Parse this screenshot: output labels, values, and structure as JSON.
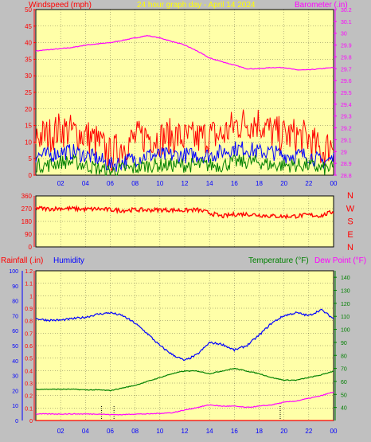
{
  "chart_data": [
    {
      "type": "line",
      "title": "24 hour graph day - April 14 2024",
      "ylabel": "Windspeed (mph)",
      "y2label": "Barometer (.in)",
      "ylim": [
        0,
        50
      ],
      "y2lim": [
        28.8,
        30.2
      ],
      "x": [
        0,
        1,
        2,
        3,
        4,
        5,
        6,
        7,
        8,
        9,
        10,
        11,
        12,
        13,
        14,
        15,
        16,
        17,
        18,
        19,
        20,
        21,
        22,
        23,
        24
      ],
      "xlim": [
        0,
        24
      ],
      "xticks": [
        "02",
        "04",
        "06",
        "08",
        "10",
        "12",
        "14",
        "16",
        "18",
        "20",
        "22",
        "00"
      ],
      "yticks": [
        "0",
        "5",
        "10",
        "15",
        "20",
        "25",
        "30",
        "35",
        "40",
        "45",
        "50"
      ],
      "y2ticks": [
        "28.8",
        "28.9",
        "29",
        "29.1",
        "29.2",
        "29.3",
        "29.4",
        "29.5",
        "29.6",
        "29.7",
        "29.8",
        "29.9",
        "30",
        "30.1",
        "30.2"
      ],
      "grid": true,
      "series": [
        {
          "name": "Barometer",
          "color": "#ff00ff",
          "values": [
            29.85,
            29.86,
            29.87,
            29.88,
            29.9,
            29.91,
            29.92,
            29.94,
            29.96,
            29.98,
            29.96,
            29.93,
            29.9,
            29.85,
            29.79,
            29.76,
            29.73,
            29.7,
            29.7,
            29.71,
            29.71,
            29.69,
            29.69,
            29.7,
            29.71
          ]
        },
        {
          "name": "Gust",
          "color": "#ff0000",
          "values": [
            12,
            12,
            14,
            13,
            12,
            10,
            6,
            9,
            11,
            12,
            11,
            12,
            11,
            11,
            12,
            12,
            15,
            16,
            16,
            13,
            12,
            12,
            11,
            7,
            10
          ]
        },
        {
          "name": "Average",
          "color": "#0000ff",
          "values": [
            6,
            6,
            7,
            7,
            6,
            5,
            3,
            4,
            5,
            6,
            6,
            6,
            6,
            6,
            6,
            7,
            8,
            8,
            7,
            7,
            6,
            6,
            6,
            4,
            5
          ]
        },
        {
          "name": "Minimum",
          "color": "#008000",
          "values": [
            3,
            3,
            4,
            4,
            3,
            2,
            1,
            2,
            2,
            3,
            3,
            3,
            3,
            3,
            3,
            3,
            4,
            4,
            4,
            3,
            3,
            3,
            3,
            2,
            2
          ]
        }
      ]
    },
    {
      "type": "line",
      "ylabel": "Wind Direction",
      "ylim": [
        0,
        360
      ],
      "yticks": [
        "0",
        "90",
        "180",
        "270",
        "360"
      ],
      "direction_labels": [
        "N",
        "W",
        "S",
        "E",
        "N"
      ],
      "x": [
        0,
        1,
        2,
        3,
        4,
        5,
        6,
        7,
        8,
        9,
        10,
        11,
        12,
        13,
        14,
        15,
        16,
        17,
        18,
        19,
        20,
        21,
        22,
        23,
        24
      ],
      "xlim": [
        0,
        24
      ],
      "series": [
        {
          "name": "Wind Direction",
          "color": "#ff0000",
          "values": [
            275,
            268,
            272,
            270,
            265,
            268,
            262,
            258,
            262,
            260,
            262,
            260,
            258,
            262,
            240,
            215,
            230,
            232,
            225,
            218,
            215,
            218,
            225,
            220,
            250
          ]
        }
      ]
    },
    {
      "type": "line",
      "ylabel": "Rainfall (.in)",
      "ylabel2": "Humidity",
      "y2label": "Temperature (°F)",
      "y2label2": "Dew Point (°F)",
      "ylim": [
        0,
        1.2
      ],
      "ylim_humidity": [
        0,
        100
      ],
      "y2lim": [
        30,
        145
      ],
      "x": [
        0,
        1,
        2,
        3,
        4,
        5,
        6,
        7,
        8,
        9,
        10,
        11,
        12,
        13,
        14,
        15,
        16,
        17,
        18,
        19,
        20,
        21,
        22,
        23,
        24
      ],
      "xlim": [
        0,
        24
      ],
      "xticks": [
        "02",
        "04",
        "06",
        "08",
        "10",
        "12",
        "14",
        "16",
        "18",
        "20",
        "22",
        "00"
      ],
      "yticks_rain": [
        "0",
        "0.1",
        "0.2",
        "0.3",
        "0.4",
        "0.5",
        "0.6",
        "0.7",
        "0.8",
        "0.9",
        "1",
        "1.1",
        "1.2"
      ],
      "yticks_humidity": [
        "0",
        "10",
        "20",
        "30",
        "40",
        "50",
        "60",
        "70",
        "80",
        "90",
        "100"
      ],
      "yticks_temp": [
        "40",
        "50",
        "60",
        "70",
        "80",
        "90",
        "100",
        "110",
        "120",
        "130",
        "140"
      ],
      "series": [
        {
          "name": "Humidity",
          "color": "#0000ff",
          "values": [
            68,
            67,
            67,
            68,
            69,
            71,
            72,
            70,
            65,
            58,
            50,
            44,
            40,
            44,
            52,
            51,
            47,
            50,
            57,
            65,
            70,
            72,
            70,
            74,
            68
          ]
        },
        {
          "name": "Temperature",
          "color": "#008000",
          "values": [
            54,
            54,
            54,
            54,
            53.5,
            53.5,
            53,
            55,
            57,
            60,
            63,
            66,
            68,
            68,
            66,
            68,
            70,
            68,
            66,
            63,
            61,
            61,
            63,
            65,
            68
          ]
        },
        {
          "name": "Dew Point",
          "color": "#ff00ff",
          "values": [
            35,
            35,
            35,
            35,
            35,
            35,
            34.5,
            34.5,
            35,
            35,
            35.5,
            36,
            38,
            40,
            42,
            41,
            41,
            40,
            41,
            42,
            44,
            45,
            47,
            49,
            52
          ]
        },
        {
          "name": "Rainfall",
          "color": "#ff0000",
          "values": [
            0,
            0,
            0,
            0,
            0,
            0,
            0,
            0,
            0,
            0,
            0,
            0,
            0,
            0,
            0,
            0,
            0,
            0,
            0,
            0,
            0,
            0,
            0,
            0,
            0
          ]
        }
      ],
      "markers": [
        {
          "x": 5.3,
          "style": "dotted"
        },
        {
          "x": 6.3,
          "style": "dotted"
        },
        {
          "x": 19.7,
          "style": "dotted"
        }
      ]
    }
  ]
}
